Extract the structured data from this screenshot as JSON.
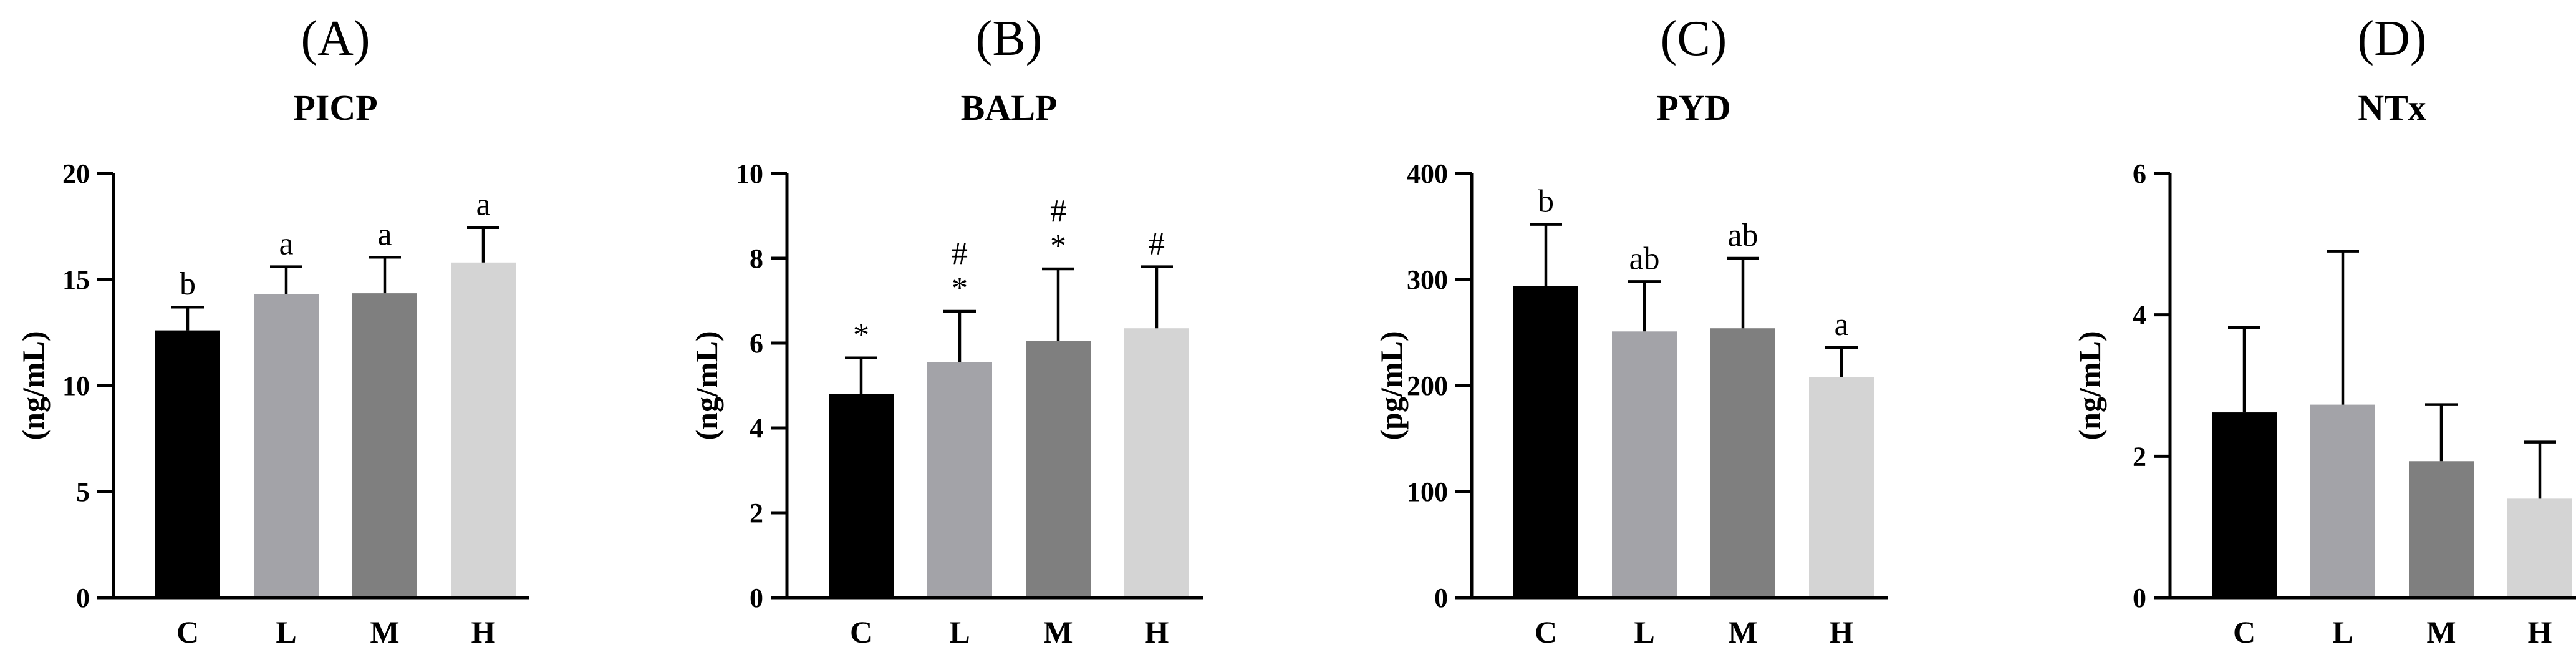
{
  "colors": {
    "C": "#000000",
    "L": "#a3a3a8",
    "M": "#7f7f7f",
    "H": "#d4d4d4",
    "axis": "#000000"
  },
  "chart_data": [
    {
      "type": "bar",
      "panel": "(A)",
      "title": "PICP",
      "ylabel": "(ng/mL)",
      "categories": [
        "C",
        "L",
        "M",
        "H"
      ],
      "values": [
        12.6,
        14.3,
        14.35,
        15.8
      ],
      "errors": [
        1.1,
        1.3,
        1.7,
        1.65
      ],
      "significance": [
        "b",
        "a",
        "a",
        "a"
      ],
      "yticks": [
        0,
        5,
        10,
        15,
        20
      ],
      "ylim": [
        0,
        20
      ]
    },
    {
      "type": "bar",
      "panel": "(B)",
      "title": "BALP",
      "ylabel": "(ng/mL)",
      "categories": [
        "C",
        "L",
        "M",
        "H"
      ],
      "values": [
        4.8,
        5.55,
        6.05,
        6.35
      ],
      "errors": [
        0.85,
        1.2,
        1.7,
        1.45
      ],
      "significance": [
        "*",
        "#\n*",
        "#\n*",
        "#"
      ],
      "yticks": [
        0,
        2,
        4,
        6,
        8,
        10
      ],
      "ylim": [
        0,
        10
      ]
    },
    {
      "type": "bar",
      "panel": "(C)",
      "title": "PYD",
      "ylabel": "(pg/mL)",
      "categories": [
        "C",
        "L",
        "M",
        "H"
      ],
      "values": [
        294,
        251,
        254,
        208
      ],
      "errors": [
        58,
        47,
        66,
        28
      ],
      "significance": [
        "b",
        "ab",
        "ab",
        "a"
      ],
      "yticks": [
        0,
        100,
        200,
        300,
        400
      ],
      "ylim": [
        0,
        400
      ]
    },
    {
      "type": "bar",
      "panel": "(D)",
      "title": "NTx",
      "ylabel": "(ng/mL)",
      "categories": [
        "C",
        "L",
        "M",
        "H"
      ],
      "values": [
        2.62,
        2.73,
        1.93,
        1.4
      ],
      "errors": [
        1.2,
        2.17,
        0.8,
        0.8
      ],
      "significance": [
        "",
        "",
        "",
        ""
      ],
      "yticks": [
        0,
        2,
        4,
        6
      ],
      "ylim": [
        0,
        6
      ]
    }
  ]
}
